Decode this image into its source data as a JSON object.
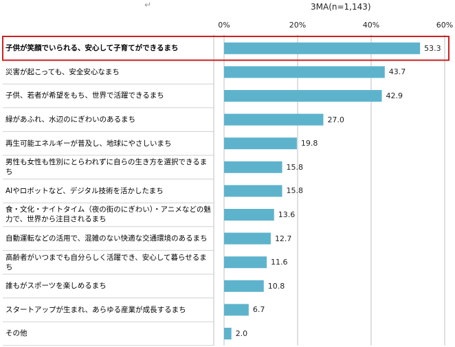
{
  "chart_data": {
    "type": "bar",
    "orientation": "horizontal",
    "title": "3MA(n=1,143)",
    "xlim": [
      0,
      60
    ],
    "xticks": [
      "0%",
      "20%",
      "40%",
      "60%"
    ],
    "grid": true,
    "bar_color": "#5eb3cc",
    "highlight_color": "#cc1f1f",
    "categories": [
      "子供が笑顔でいられる、安心して子育てができるまち",
      "災害が起こっても、安全安心なまち",
      "子供、若者が希望をもち、世界で活躍できるまち",
      "緑があふれ、水辺のにぎわいのあるまち",
      "再生可能エネルギーが普及し、地球にやさしいまち",
      "男性も女性も性別にとらわれずに自らの生き方を選択できるまち",
      "AIやロボットなど、デジタル技術を活かしたまち",
      "食・文化・ナイトタイム（夜の街のにぎわい）・アニメなどの魅力で、世界から注目されるまち",
      "自動運転などの活用で、混雑のない快適な交通環境のあるまち",
      "高齢者がいつまでも自分らしく活躍でき、安心して暮らせるまち",
      "誰もがスポーツを楽しめるまち",
      "スタートアップが生まれ、あらゆる産業が成長するまち",
      "その他"
    ],
    "values": [
      53.3,
      43.7,
      42.9,
      27.0,
      19.8,
      15.8,
      15.8,
      13.6,
      12.7,
      11.6,
      10.8,
      6.7,
      2.0
    ],
    "value_labels": [
      "53.3",
      "43.7",
      "42.9",
      "27.0",
      "19.8",
      "15.8",
      "15.8",
      "13.6",
      "12.7",
      "11.6",
      "10.8",
      "6.7",
      "2.0"
    ],
    "highlighted_index": 0
  },
  "arrow_glyph": "↵"
}
